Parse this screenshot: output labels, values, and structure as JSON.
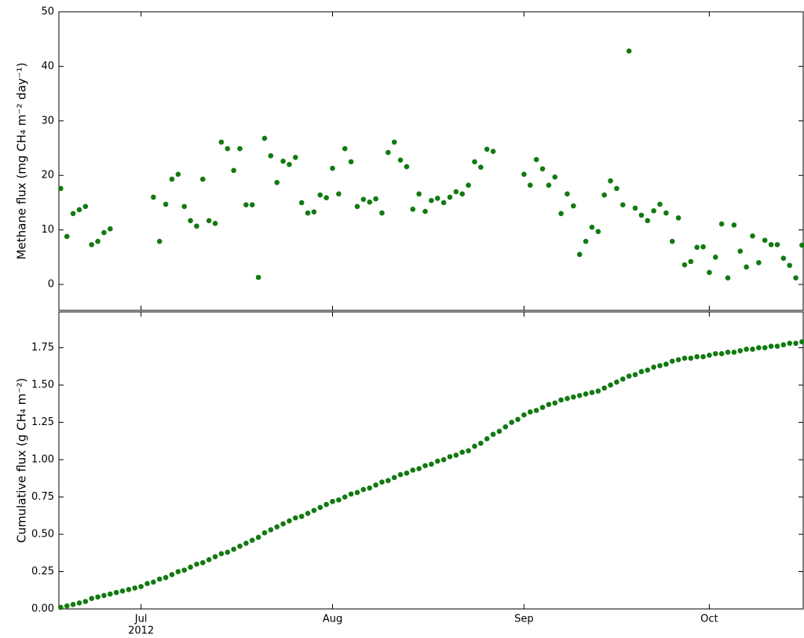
{
  "chart_data": [
    {
      "type": "scatter",
      "ylabel": "Methane flux (mg CH₄ m⁻² day⁻¹)",
      "color": "#117a11",
      "xlim": [
        169.7,
        290.2
      ],
      "xticks": [
        183,
        214,
        245,
        275
      ],
      "ylim": [
        -4.75,
        50
      ],
      "yticks": [
        0,
        10,
        20,
        30,
        40,
        50
      ],
      "x": [
        170,
        171,
        172,
        173,
        174,
        175,
        176,
        177,
        178,
        185,
        186,
        187,
        188,
        189,
        190,
        191,
        192,
        193,
        194,
        195,
        196,
        197,
        198,
        199,
        200,
        201,
        202,
        203,
        204,
        205,
        206,
        207,
        208,
        209,
        210,
        211,
        212,
        213,
        214,
        215,
        216,
        217,
        218,
        219,
        220,
        221,
        222,
        223,
        224,
        225,
        226,
        227,
        228,
        229,
        230,
        231,
        232,
        233,
        234,
        235,
        236,
        237,
        238,
        239,
        240,
        245,
        246,
        247,
        248,
        249,
        250,
        251,
        252,
        253,
        254,
        255,
        256,
        257,
        258,
        259,
        260,
        261,
        262,
        263,
        264,
        265,
        266,
        267,
        268,
        269,
        270,
        271,
        272,
        273,
        274,
        275,
        276,
        277,
        278,
        279,
        280,
        281,
        282,
        283,
        284,
        285,
        286,
        287,
        288,
        289,
        290
      ],
      "values": [
        17.6,
        8.8,
        13.0,
        13.7,
        14.3,
        7.3,
        7.9,
        9.5,
        10.2,
        16.0,
        7.9,
        14.7,
        19.3,
        20.2,
        14.3,
        11.7,
        10.7,
        19.3,
        11.7,
        11.2,
        26.1,
        24.9,
        20.9,
        24.9,
        14.6,
        14.6,
        1.3,
        26.8,
        23.6,
        18.7,
        22.6,
        22.0,
        23.3,
        15.0,
        13.1,
        13.3,
        16.4,
        15.9,
        21.3,
        16.6,
        24.9,
        22.5,
        14.3,
        15.6,
        15.1,
        15.7,
        13.1,
        24.2,
        26.1,
        22.8,
        21.6,
        13.8,
        16.6,
        13.4,
        15.4,
        15.8,
        15.0,
        16.0,
        17.0,
        16.6,
        18.2,
        22.5,
        21.5,
        24.8,
        24.4,
        20.2,
        18.2,
        22.9,
        21.2,
        18.2,
        19.7,
        13.0,
        16.6,
        14.4,
        5.5,
        7.9,
        10.5,
        9.7,
        16.4,
        19.0,
        17.6,
        14.6,
        42.8,
        14.0,
        12.7,
        11.7,
        13.5,
        14.7,
        13.1,
        7.9,
        12.2,
        3.6,
        4.2,
        6.8,
        6.9,
        2.2,
        5.0,
        11.1,
        1.2,
        10.9,
        6.1,
        3.2,
        8.9,
        4.0,
        8.1,
        7.3,
        7.3,
        4.8,
        3.5,
        1.2,
        7.2
      ]
    },
    {
      "type": "scatter",
      "ylabel": "Cumulative flux (g CH₄ m⁻²)",
      "color": "#117a11",
      "xlim": [
        169.7,
        290.2
      ],
      "xticks": [
        {
          "value": 183,
          "label": "Jul"
        },
        {
          "value": 214,
          "label": "Aug"
        },
        {
          "value": 245,
          "label": "Sep"
        },
        {
          "value": 275,
          "label": "Oct"
        }
      ],
      "year_label": "2012",
      "ylim": [
        0,
        1.99
      ],
      "yticks": [
        {
          "value": 0,
          "label": "0.00"
        },
        0.25,
        {
          "value": 0.5,
          "label": "0.50"
        },
        0.75,
        {
          "value": 1,
          "label": "1.00"
        },
        1.25,
        {
          "value": 1.5,
          "label": "1.50"
        },
        1.75
      ],
      "x": [
        170,
        171,
        172,
        173,
        174,
        175,
        176,
        177,
        178,
        179,
        180,
        181,
        182,
        183,
        184,
        185,
        186,
        187,
        188,
        189,
        190,
        191,
        192,
        193,
        194,
        195,
        196,
        197,
        198,
        199,
        200,
        201,
        202,
        203,
        204,
        205,
        206,
        207,
        208,
        209,
        210,
        211,
        212,
        213,
        214,
        215,
        216,
        217,
        218,
        219,
        220,
        221,
        222,
        223,
        224,
        225,
        226,
        227,
        228,
        229,
        230,
        231,
        232,
        233,
        234,
        235,
        236,
        237,
        238,
        239,
        240,
        241,
        242,
        243,
        244,
        245,
        246,
        247,
        248,
        249,
        250,
        251,
        252,
        253,
        254,
        255,
        256,
        257,
        258,
        259,
        260,
        261,
        262,
        263,
        264,
        265,
        266,
        267,
        268,
        269,
        270,
        271,
        272,
        273,
        274,
        275,
        276,
        277,
        278,
        279,
        280,
        281,
        282,
        283,
        284,
        285,
        286,
        287,
        288,
        289,
        290
      ],
      "values": [
        0.01,
        0.02,
        0.03,
        0.04,
        0.05,
        0.07,
        0.08,
        0.09,
        0.1,
        0.11,
        0.12,
        0.13,
        0.14,
        0.15,
        0.17,
        0.18,
        0.2,
        0.21,
        0.23,
        0.25,
        0.26,
        0.28,
        0.3,
        0.31,
        0.33,
        0.35,
        0.37,
        0.38,
        0.4,
        0.42,
        0.44,
        0.46,
        0.48,
        0.51,
        0.53,
        0.55,
        0.57,
        0.59,
        0.61,
        0.62,
        0.64,
        0.66,
        0.68,
        0.7,
        0.72,
        0.73,
        0.75,
        0.77,
        0.78,
        0.8,
        0.81,
        0.83,
        0.85,
        0.86,
        0.88,
        0.9,
        0.91,
        0.93,
        0.94,
        0.96,
        0.97,
        0.99,
        1.0,
        1.02,
        1.03,
        1.05,
        1.06,
        1.09,
        1.11,
        1.14,
        1.17,
        1.19,
        1.22,
        1.25,
        1.27,
        1.3,
        1.32,
        1.33,
        1.35,
        1.37,
        1.38,
        1.4,
        1.41,
        1.42,
        1.43,
        1.44,
        1.45,
        1.46,
        1.48,
        1.5,
        1.52,
        1.54,
        1.56,
        1.57,
        1.59,
        1.6,
        1.62,
        1.63,
        1.64,
        1.66,
        1.67,
        1.68,
        1.68,
        1.69,
        1.69,
        1.7,
        1.71,
        1.71,
        1.72,
        1.72,
        1.73,
        1.74,
        1.74,
        1.75,
        1.75,
        1.76,
        1.76,
        1.77,
        1.78,
        1.78,
        1.79
      ]
    }
  ]
}
